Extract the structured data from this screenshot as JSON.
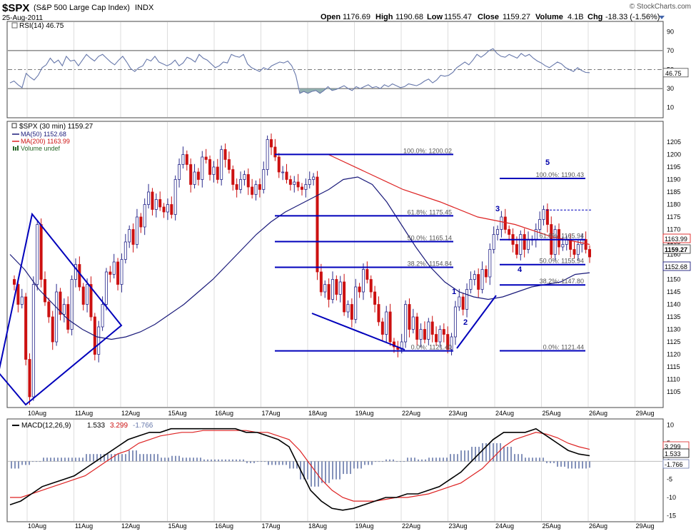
{
  "header": {
    "symbol": "$SPX",
    "name": "(S&P 500 Large Cap Index)",
    "exchange": "INDX",
    "date": "25-Aug-2011",
    "open_label": "Open",
    "open": "1176.69",
    "high_label": "High",
    "high": "1190.68",
    "low_label": "Low",
    "low": "1155.47",
    "close_label": "Close",
    "close": "1159.27",
    "volume_label": "Volume",
    "volume": "4.1B",
    "chg_label": "Chg",
    "chg": "-18.33 (-1.56%)",
    "watermark": "© StockCharts.com"
  },
  "colors": {
    "up": "#2a2a8c",
    "down": "#cc1111",
    "ma50": "#1a1a7a",
    "ma200": "#dd2222",
    "fib": "#0000bb",
    "rsi": "#6677aa",
    "macd": "#000000",
    "signal": "#dd2222",
    "hist": "#6677aa",
    "frame": "#444444",
    "grid": "#dddddd",
    "fill": "#88aaaa"
  },
  "dates": [
    "10Aug",
    "11Aug",
    "12Aug",
    "15Aug",
    "16Aug",
    "17Aug",
    "18Aug",
    "19Aug",
    "22Aug",
    "23Aug",
    "24Aug",
    "25Aug",
    "26Aug",
    "29Aug"
  ],
  "rsi": {
    "legend": "RSI(14) 46.75",
    "last_label": "46.75",
    "ticks": [
      "90",
      "70",
      "50",
      "30",
      "10"
    ],
    "tick_values": [
      90,
      70,
      50,
      30,
      10
    ],
    "ylim": [
      0,
      100
    ],
    "lines": [
      70,
      30
    ],
    "values": [
      36,
      38,
      34,
      31,
      46,
      42,
      39,
      44,
      52,
      55,
      62,
      57,
      60,
      54,
      64,
      59,
      60,
      54,
      60,
      66,
      62,
      59,
      64,
      66,
      62,
      58,
      55,
      60,
      64,
      58,
      51,
      48,
      52,
      54,
      61,
      59,
      64,
      58,
      56,
      54,
      56,
      60,
      54,
      57,
      63,
      61,
      58,
      66,
      62,
      60,
      56,
      52,
      54,
      58,
      57,
      66,
      64,
      63,
      66,
      56,
      52,
      50,
      48,
      52,
      50,
      54,
      56,
      58,
      57,
      59,
      54,
      44,
      25,
      27,
      25,
      27,
      28,
      25,
      28,
      32,
      28,
      29,
      31,
      33,
      30,
      28,
      32,
      30,
      32,
      34,
      31,
      32,
      30,
      34,
      32,
      35,
      33,
      31,
      32,
      35,
      34,
      33,
      35,
      38,
      40,
      36,
      39,
      44,
      43,
      44,
      47,
      52,
      55,
      58,
      55,
      60,
      66,
      63,
      66,
      70,
      72,
      67,
      64,
      63,
      66,
      64,
      62,
      67,
      64,
      66,
      62,
      59,
      57,
      54,
      52,
      55,
      58,
      56,
      52,
      50,
      48,
      52,
      49,
      47,
      46.75
    ],
    "oversold_fill_start": 72,
    "oversold_fill_end": 83
  },
  "price": {
    "legend_title": "$SPX (30 min) 1159.27",
    "legend_ma50": "MA(50) 1152.68",
    "legend_ma200": "MA(200) 1163.99",
    "legend_volume": "Volume undef",
    "ticks": [
      "1205",
      "1200",
      "1195",
      "1190",
      "1185",
      "1180",
      "1175",
      "1170",
      "1165",
      "1160",
      "1155",
      "1150",
      "1145",
      "1140",
      "1135",
      "1130",
      "1125",
      "1120",
      "1115",
      "1110",
      "1105"
    ],
    "tick_values": [
      1205,
      1200,
      1195,
      1190,
      1185,
      1180,
      1175,
      1170,
      1165,
      1160,
      1155,
      1150,
      1145,
      1140,
      1135,
      1130,
      1125,
      1120,
      1115,
      1110,
      1105
    ],
    "ylim": [
      1099,
      1213
    ],
    "tags": {
      "ma200": "1163.99",
      "close": "1159.27",
      "ma50": "1152.68"
    },
    "closes": [
      1148,
      1140,
      1143,
      1118,
      1103,
      1148,
      1172,
      1150,
      1141,
      1135,
      1125,
      1145,
      1136,
      1140,
      1130,
      1150,
      1156,
      1147,
      1140,
      1148,
      1135,
      1120,
      1131,
      1140,
      1153,
      1152,
      1157,
      1148,
      1158,
      1165,
      1170,
      1164,
      1175,
      1171,
      1180,
      1185,
      1178,
      1182,
      1179,
      1177,
      1180,
      1176,
      1190,
      1196,
      1200,
      1196,
      1188,
      1193,
      1190,
      1199,
      1198,
      1192,
      1195,
      1190,
      1202,
      1198,
      1194,
      1188,
      1186,
      1190,
      1192,
      1187,
      1184,
      1188,
      1186,
      1194,
      1206,
      1203,
      1199,
      1193,
      1193,
      1190,
      1188,
      1189,
      1187,
      1186,
      1188,
      1190,
      1191,
      1153,
      1145,
      1148,
      1142,
      1150,
      1144,
      1149,
      1137,
      1140,
      1134,
      1147,
      1145,
      1154,
      1150,
      1145,
      1140,
      1133,
      1128,
      1137,
      1125,
      1123,
      1122,
      1125,
      1140,
      1130,
      1135,
      1126,
      1130,
      1126,
      1133,
      1128,
      1125,
      1130,
      1128,
      1122,
      1127,
      1139,
      1143,
      1138,
      1146,
      1150,
      1152,
      1146,
      1154,
      1151,
      1162,
      1168,
      1170,
      1175,
      1170,
      1168,
      1164,
      1160,
      1168,
      1162,
      1166,
      1166,
      1170,
      1174,
      1178,
      1172,
      1160,
      1170,
      1163,
      1164,
      1166,
      1162,
      1160,
      1164,
      1166,
      1162,
      1159
    ],
    "ma50": [
      1160,
      1154,
      1146,
      1140,
      1134,
      1130,
      1127,
      1126,
      1127,
      1129,
      1132,
      1136,
      1140,
      1145,
      1150,
      1156,
      1162,
      1168,
      1173,
      1177,
      1180,
      1183,
      1186,
      1190,
      1191,
      1188,
      1181,
      1172,
      1163,
      1155,
      1149,
      1145,
      1143,
      1142,
      1143,
      1145,
      1147,
      1148,
      1149,
      1152,
      1152.68
    ],
    "ma200": [
      1200,
      1193,
      1186,
      1181,
      1175,
      1172,
      1167,
      1163.99
    ],
    "fib_left": [
      {
        "value": 1200.02,
        "label": "100.0%: 1200.02"
      },
      {
        "value": 1175.45,
        "label": "61.8%: 1175.45"
      },
      {
        "value": 1165.14,
        "label": "50.0%: 1165.14"
      },
      {
        "value": 1154.84,
        "label": "38.2%: 1154.84"
      },
      {
        "value": 1121.4,
        "label": "0.0%: 1121.40"
      }
    ],
    "fib_right": [
      {
        "value": 1190.43,
        "label": "100.0%: 1190.43"
      },
      {
        "value": 1165.94,
        "label": "61.8%: 1165.94"
      },
      {
        "value": 1155.94,
        "label": "50.0%: 1155.94"
      },
      {
        "value": 1147.8,
        "label": "38.2%: 1147.80"
      },
      {
        "value": 1121.44,
        "label": "0.0%: 1121.44"
      }
    ],
    "fib_dashed_value": 1177.8,
    "waves": [
      "1",
      "2",
      "3",
      "4",
      "5"
    ]
  },
  "macd": {
    "legend_prefix": "MACD(12,26,9)",
    "macd_value": "1.533",
    "signal_value": "3.299",
    "hist_value": "-1.766",
    "ticks": [
      "10",
      "5",
      "0",
      "-5",
      "-10",
      "-15"
    ],
    "tick_values": [
      10,
      5,
      0,
      -5,
      -10,
      -15
    ],
    "ylim": [
      -16.5,
      11.5
    ],
    "macd": [
      -12,
      -11,
      -9,
      -7,
      -6,
      -5,
      -4,
      -2,
      0,
      2,
      4,
      6,
      7,
      8,
      8,
      9,
      9,
      9,
      9,
      9,
      9,
      9,
      8,
      8,
      7,
      6,
      4,
      -2,
      -8,
      -11,
      -13,
      -13.5,
      -13,
      -12,
      -11,
      -10,
      -10,
      -9,
      -9,
      -8,
      -7,
      -5,
      -3,
      0,
      3,
      6,
      8,
      8,
      8,
      9,
      7,
      5,
      3,
      2,
      1.533
    ],
    "signal": [
      -10,
      -10,
      -9,
      -8,
      -7,
      -6,
      -5,
      -4,
      -2,
      0,
      2,
      3,
      5,
      6,
      7,
      7.5,
      8,
      8,
      8.5,
      8.5,
      8.5,
      8.5,
      8.5,
      8,
      8,
      7,
      6,
      3,
      -1,
      -5,
      -8,
      -10,
      -11,
      -11,
      -11,
      -10.5,
      -10,
      -10,
      -9.5,
      -9,
      -8,
      -7,
      -6,
      -4,
      -2,
      1,
      4,
      6,
      7,
      8,
      7.5,
      6.5,
      5,
      4,
      3.299
    ],
    "hist": [
      -2,
      -1,
      0,
      1,
      1,
      1,
      1,
      2,
      2,
      2,
      2,
      3,
      2,
      2,
      1,
      1.5,
      1,
      1,
      0.5,
      0.5,
      0.5,
      0.5,
      -0.5,
      0,
      -1,
      -1,
      -2,
      -5,
      -7,
      -6,
      -5,
      -3.5,
      -2,
      -1,
      0,
      0.5,
      0,
      1,
      0.5,
      1,
      1,
      2,
      3,
      4,
      5,
      5,
      4,
      2,
      1,
      1,
      -0.5,
      -1.5,
      -2,
      -2,
      -1.766
    ]
  }
}
